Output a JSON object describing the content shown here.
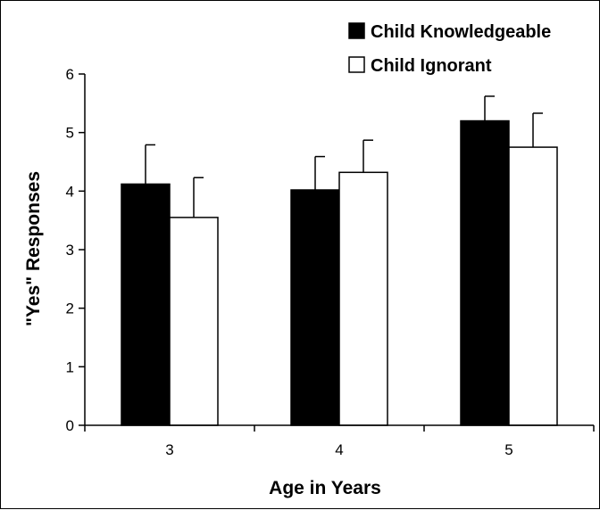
{
  "chart_data": {
    "type": "bar",
    "categories": [
      "3",
      "4",
      "5"
    ],
    "series": [
      {
        "name": "Child Knowledgeable",
        "values": [
          4.12,
          4.02,
          5.2
        ],
        "error": [
          0.67,
          0.57,
          0.42
        ],
        "fill": "#000000"
      },
      {
        "name": "Child Ignorant",
        "values": [
          3.55,
          4.32,
          4.75
        ],
        "error": [
          0.68,
          0.55,
          0.58
        ],
        "fill": "#ffffff"
      }
    ],
    "yticks": [
      "0",
      "1",
      "2",
      "3",
      "4",
      "5",
      "6"
    ],
    "ylim": [
      0,
      6
    ],
    "xlabel": "Age in Years",
    "ylabel": "\"Yes\" Responses",
    "legend_position": "top-right",
    "grid": false
  }
}
